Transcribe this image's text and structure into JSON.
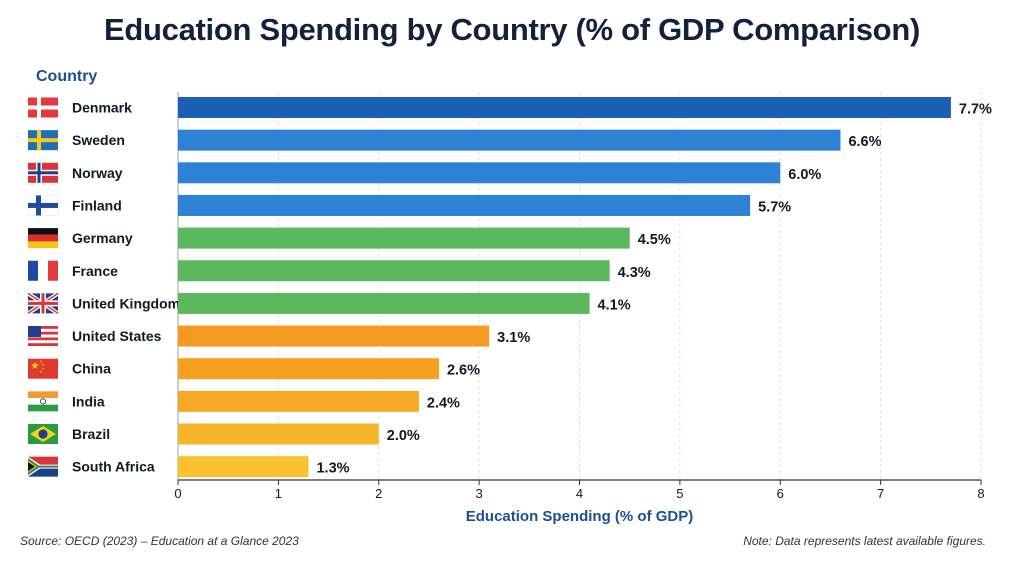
{
  "chart_data": {
    "type": "bar",
    "orientation": "horizontal",
    "title": "Education Spending by Country (% of GDP Comparison)",
    "ylabel": "Country",
    "xlabel": "Education Spending (% of GDP)",
    "xlim": [
      0,
      8
    ],
    "xticks": [
      0,
      1,
      2,
      3,
      4,
      5,
      6,
      7,
      8
    ],
    "grid": true,
    "categories": [
      "Denmark",
      "Sweden",
      "Norway",
      "Finland",
      "Germany",
      "France",
      "United Kingdom",
      "United States",
      "China",
      "India",
      "Brazil",
      "South Africa"
    ],
    "values": [
      7.7,
      6.6,
      6.0,
      5.7,
      4.5,
      4.3,
      4.1,
      3.1,
      2.6,
      2.4,
      2.0,
      1.3
    ],
    "value_labels": [
      "7.7%",
      "6.6%",
      "6.0%",
      "5.7%",
      "4.5%",
      "4.3%",
      "4.1%",
      "3.1%",
      "2.6%",
      "2.4%",
      "2.0%",
      "1.3%"
    ],
    "bar_colors": [
      "#1a5fb4",
      "#2e82d6",
      "#2e82d6",
      "#2e82d6",
      "#5cb85c",
      "#5cb85c",
      "#5cb85c",
      "#f59a23",
      "#f6a020",
      "#f7a825",
      "#f8b52a",
      "#f9c22e"
    ],
    "flags": [
      "denmark-flag-icon",
      "sweden-flag-icon",
      "norway-flag-icon",
      "finland-flag-icon",
      "germany-flag-icon",
      "france-flag-icon",
      "uk-flag-icon",
      "usa-flag-icon",
      "china-flag-icon",
      "india-flag-icon",
      "brazil-flag-icon",
      "south-africa-flag-icon"
    ]
  },
  "footer": {
    "source": "Source: OECD (2023) – Education at a Glance 2023",
    "note": "Note: Data represents latest available figures."
  }
}
